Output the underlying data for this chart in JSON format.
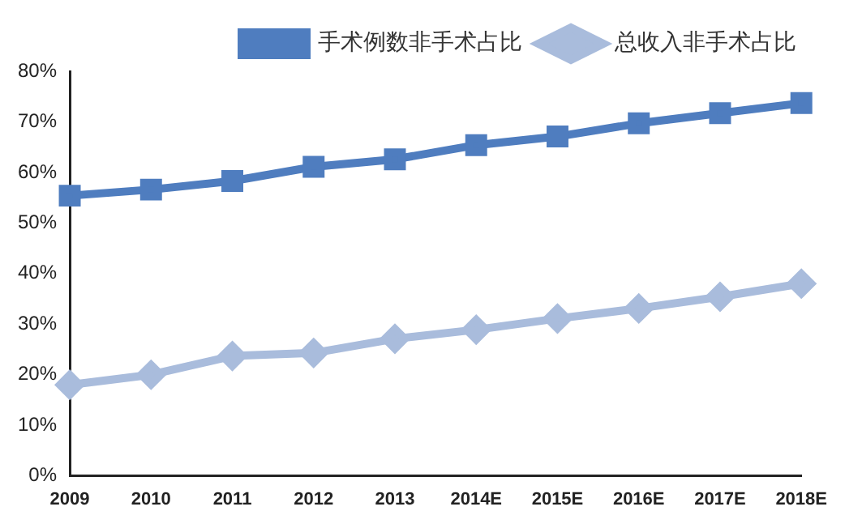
{
  "chart_data": {
    "type": "line",
    "categories": [
      "2009",
      "2010",
      "2011",
      "2012",
      "2013",
      "2014E",
      "2015E",
      "2016E",
      "2017E",
      "2018E"
    ],
    "series": [
      {
        "name": "手术例数非手术占比",
        "color": "#4f7dbf",
        "marker": "square",
        "values": [
          55.4,
          56.6,
          58.3,
          61.1,
          62.6,
          65.4,
          67.1,
          69.7,
          71.7,
          73.7
        ]
      },
      {
        "name": "总收入非手术占比",
        "color": "#a9bcdc",
        "marker": "diamond",
        "values": [
          18.0,
          20.0,
          23.7,
          24.3,
          27.1,
          28.9,
          31.1,
          33.1,
          35.4,
          38.0
        ]
      }
    ],
    "ylim": [
      0,
      80
    ],
    "yticks": [
      {
        "value": 0,
        "label": "0%"
      },
      {
        "value": 10,
        "label": "10%"
      },
      {
        "value": 20,
        "label": "20%"
      },
      {
        "value": 30,
        "label": "30%"
      },
      {
        "value": 40,
        "label": "40%"
      },
      {
        "value": 50,
        "label": "50%"
      },
      {
        "value": 60,
        "label": "60%"
      },
      {
        "value": 70,
        "label": "70%"
      },
      {
        "value": 80,
        "label": "80%"
      }
    ],
    "grid": false,
    "legend": "top"
  }
}
